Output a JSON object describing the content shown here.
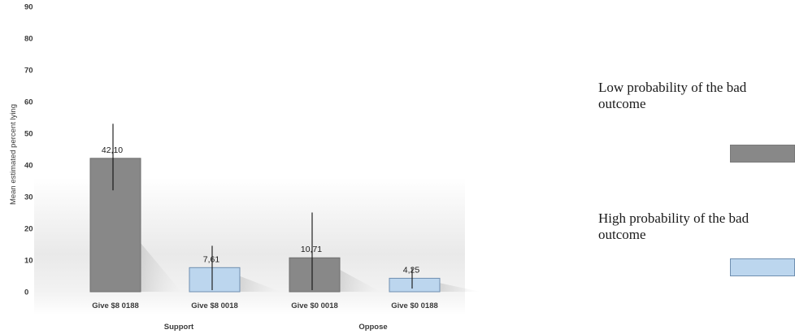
{
  "chart_data": {
    "type": "bar",
    "ylabel": "Mean estimated percent lying",
    "ylim": [
      0,
      90
    ],
    "yticks": [
      0,
      10,
      20,
      30,
      40,
      50,
      60,
      70,
      80,
      90
    ],
    "bars": [
      {
        "label": "Give $8  0188",
        "group": "Support",
        "series": "Low probability of the bad outcome",
        "value": 42.1,
        "value_label": "42,10",
        "err_high": 53,
        "err_low": 32
      },
      {
        "label": "Give $8  0018",
        "group": "Support",
        "series": "High probability of the bad outcome",
        "value": 7.61,
        "value_label": "7,61",
        "err_high": 14.5,
        "err_low": 0.5
      },
      {
        "label": "Give $0  0018",
        "group": "Oppose",
        "series": "Low probability of the bad outcome",
        "value": 10.71,
        "value_label": "10,71",
        "err_high": 25,
        "err_low": 0.5
      },
      {
        "label": "Give $0  0188",
        "group": "Oppose",
        "series": "High probability of the bad outcome",
        "value": 4.25,
        "value_label": "4,25",
        "err_high": 7.5,
        "err_low": 1
      }
    ],
    "groups": [
      "Support",
      "Oppose"
    ],
    "series": [
      {
        "name": "Low probability of the bad outcome",
        "color": "#888888",
        "stroke": "#6e6e6e"
      },
      {
        "name": "High probability of the bad outcome",
        "color": "#bcd6ee",
        "stroke": "#6f8fb0"
      }
    ],
    "legend_position": "right",
    "grid": false
  },
  "legend": {
    "low_line1": "Low probability of the bad",
    "low_line2": "outcome",
    "high_line1": "High probability of the bad",
    "high_line2": "outcome"
  }
}
